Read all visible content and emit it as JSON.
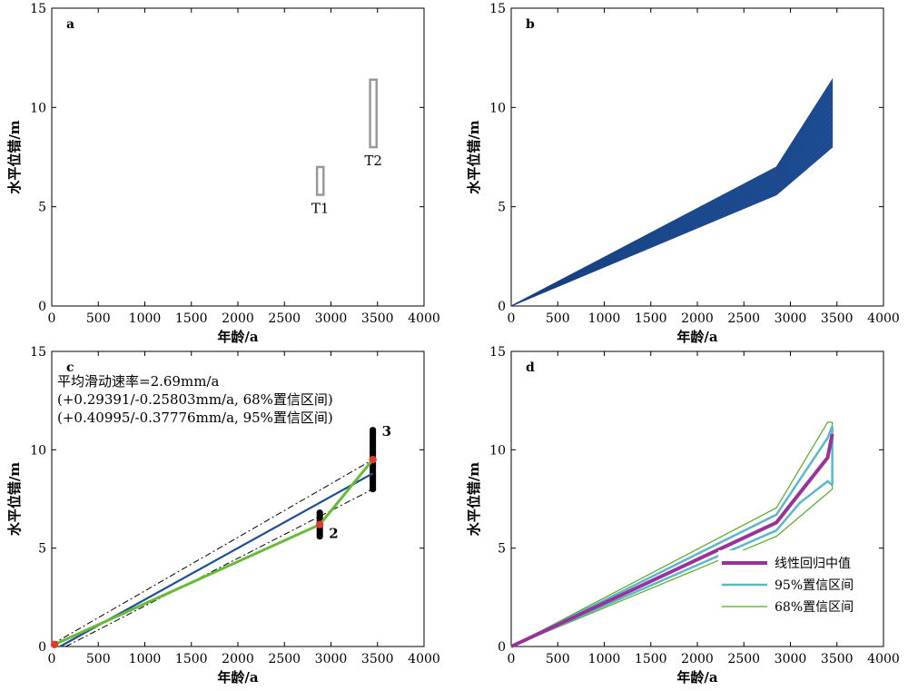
{
  "chart_data": [
    {
      "panel": "a",
      "type": "box",
      "xlabel": "年龄/a",
      "ylabel": "水平位错/m",
      "xlim": [
        0,
        4000
      ],
      "ylim": [
        0,
        15
      ],
      "xticks": [
        0,
        500,
        1000,
        1500,
        2000,
        2500,
        3000,
        3500,
        4000
      ],
      "yticks": [
        0,
        5,
        10,
        15
      ],
      "boxes": [
        {
          "label": "T1",
          "x": [
            2850,
            2920
          ],
          "y": [
            5.6,
            7.0
          ],
          "color": "#999999"
        },
        {
          "label": "T2",
          "x": [
            3420,
            3490
          ],
          "y": [
            8.0,
            11.4
          ],
          "color": "#999999"
        }
      ]
    },
    {
      "panel": "b",
      "type": "area",
      "xlabel": "年龄/a",
      "ylabel": "水平位错/m",
      "xlim": [
        0,
        4000
      ],
      "ylim": [
        0,
        15
      ],
      "xticks": [
        0,
        500,
        1000,
        1500,
        2000,
        2500,
        3000,
        3500,
        4000
      ],
      "yticks": [
        0,
        5,
        10,
        15
      ],
      "color": "#1f4e96",
      "upper": [
        [
          0,
          0
        ],
        [
          2850,
          7.0
        ],
        [
          3450,
          11.4
        ]
      ],
      "lower": [
        [
          0,
          0
        ],
        [
          2850,
          5.6
        ],
        [
          3450,
          8.0
        ]
      ]
    },
    {
      "panel": "c",
      "type": "line",
      "xlabel": "年龄/a",
      "ylabel": "水平位错/m",
      "xlim": [
        0,
        4000
      ],
      "ylim": [
        0,
        15
      ],
      "xticks": [
        0,
        500,
        1000,
        1500,
        2000,
        2500,
        3000,
        3500,
        4000
      ],
      "yticks": [
        0,
        5,
        10,
        15
      ],
      "annotations": [
        "平均滑动速率=2.69mm/a",
        "(+0.29391/-0.25803mm/a, 68%置信区间)",
        "(+0.40995/-0.37776mm/a, 95%置信区间)"
      ],
      "point_labels": [
        {
          "text": "2",
          "x": 2880,
          "y": 5.7
        },
        {
          "text": "3",
          "x": 3450,
          "y": 10.9
        }
      ],
      "green_path": [
        [
          30,
          0.1
        ],
        [
          2880,
          6.2
        ],
        [
          3450,
          9.5
        ]
      ],
      "blue_line": [
        [
          90,
          0
        ],
        [
          3450,
          8.8
        ]
      ],
      "dashdot_upper": [
        [
          0,
          0.1
        ],
        [
          3450,
          9.5
        ]
      ],
      "dashdot_lower": [
        [
          150,
          0
        ],
        [
          3450,
          8.0
        ]
      ],
      "red_points": [
        [
          30,
          0.1
        ],
        [
          2880,
          6.2
        ],
        [
          3450,
          9.5
        ]
      ],
      "stacks": [
        {
          "x": 2880,
          "ymin": 5.6,
          "ymax": 6.8
        },
        {
          "x": 3450,
          "ymin": 8.0,
          "ymax": 11.0
        }
      ]
    },
    {
      "panel": "d",
      "type": "line",
      "xlabel": "年龄/a",
      "ylabel": "水平位错/m",
      "xlim": [
        0,
        4000
      ],
      "ylim": [
        0,
        15
      ],
      "xticks": [
        0,
        500,
        1000,
        1500,
        2000,
        2500,
        3000,
        3500,
        4000
      ],
      "yticks": [
        0,
        5,
        10,
        15
      ],
      "legend_position": "bottom-right",
      "series": [
        {
          "name": "线性回归中值",
          "color": "#993399",
          "width": 4,
          "points": [
            [
              0,
              0
            ],
            [
              2850,
              6.3
            ],
            [
              3400,
              9.6
            ],
            [
              3450,
              10.8
            ]
          ]
        },
        {
          "name": "95%置信区间",
          "color": "#5ab8c8",
          "width": 2.5,
          "points_upper": [
            [
              0,
              0
            ],
            [
              2850,
              6.7
            ],
            [
              3400,
              10.6
            ],
            [
              3450,
              11.2
            ]
          ],
          "points_lower": [
            [
              0,
              0
            ],
            [
              2850,
              5.9
            ],
            [
              3100,
              7.3
            ],
            [
              3400,
              8.4
            ],
            [
              3450,
              8.2
            ]
          ]
        },
        {
          "name": "68%置信区间",
          "color": "#55aa22",
          "width": 1.2,
          "points_upper": [
            [
              0,
              0
            ],
            [
              2850,
              7.05
            ],
            [
              3400,
              11.4
            ],
            [
              3450,
              11.4
            ]
          ],
          "points_lower": [
            [
              0,
              0
            ],
            [
              2850,
              5.6
            ],
            [
              3450,
              8.0
            ]
          ]
        }
      ]
    }
  ]
}
